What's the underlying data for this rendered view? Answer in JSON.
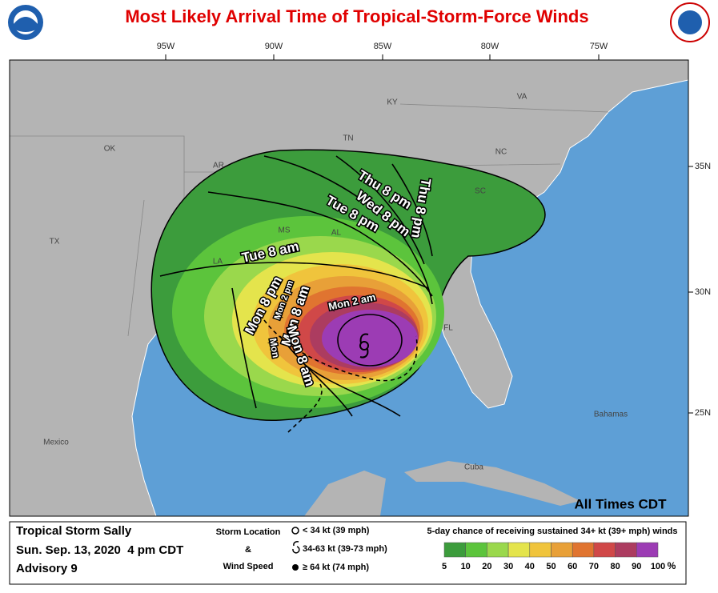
{
  "header": {
    "title": "Most Likely Arrival Time of Tropical-Storm-Force Winds"
  },
  "map": {
    "longitude_labels": [
      "95W",
      "90W",
      "85W",
      "80W",
      "75W"
    ],
    "latitude_labels": [
      "35N",
      "30N",
      "25N"
    ],
    "place_labels": [
      "KY",
      "VA",
      "TN",
      "NC",
      "OK",
      "AR",
      "SC",
      "TX",
      "MS",
      "AL",
      "LA",
      "FL",
      "Mexico",
      "Cuba",
      "Bahamas"
    ],
    "time_labels": [
      "Thu 8 pm",
      "Wed 8 pm",
      "Tue 8 pm",
      "Thu 8 pm",
      "Tue 8 am",
      "Mon 8 pm",
      "Mon 2 pm",
      "Mon 8 am",
      "Mon 2 am",
      "Mon",
      "Mon 8 am"
    ],
    "note": "All Times CDT"
  },
  "legend": {
    "storm": {
      "name": "Tropical Storm Sally",
      "date": "Sun. Sep. 13, 2020  4 pm CDT",
      "advisory": "Advisory 9"
    },
    "symbols": {
      "line_1": "Storm Location",
      "line_2": "&",
      "line_3": "Wind Speed",
      "items": [
        "< 34 kt (39 mph)",
        "34-63 kt (39-73 mph)",
        "≥ 64 kt (74 mph)"
      ]
    },
    "probability": {
      "title": "5-day chance of receiving sustained 34+ kt (39+ mph) winds",
      "scale": [
        5,
        10,
        20,
        30,
        40,
        50,
        60,
        70,
        80,
        90,
        100
      ],
      "unit": "%",
      "colors": [
        "#3c9c3c",
        "#5cc43c",
        "#9ad84c",
        "#e4e44c",
        "#f0c43c",
        "#e8a038",
        "#e07430",
        "#d04848",
        "#ac3c60",
        "#9c3cb4"
      ]
    }
  }
}
